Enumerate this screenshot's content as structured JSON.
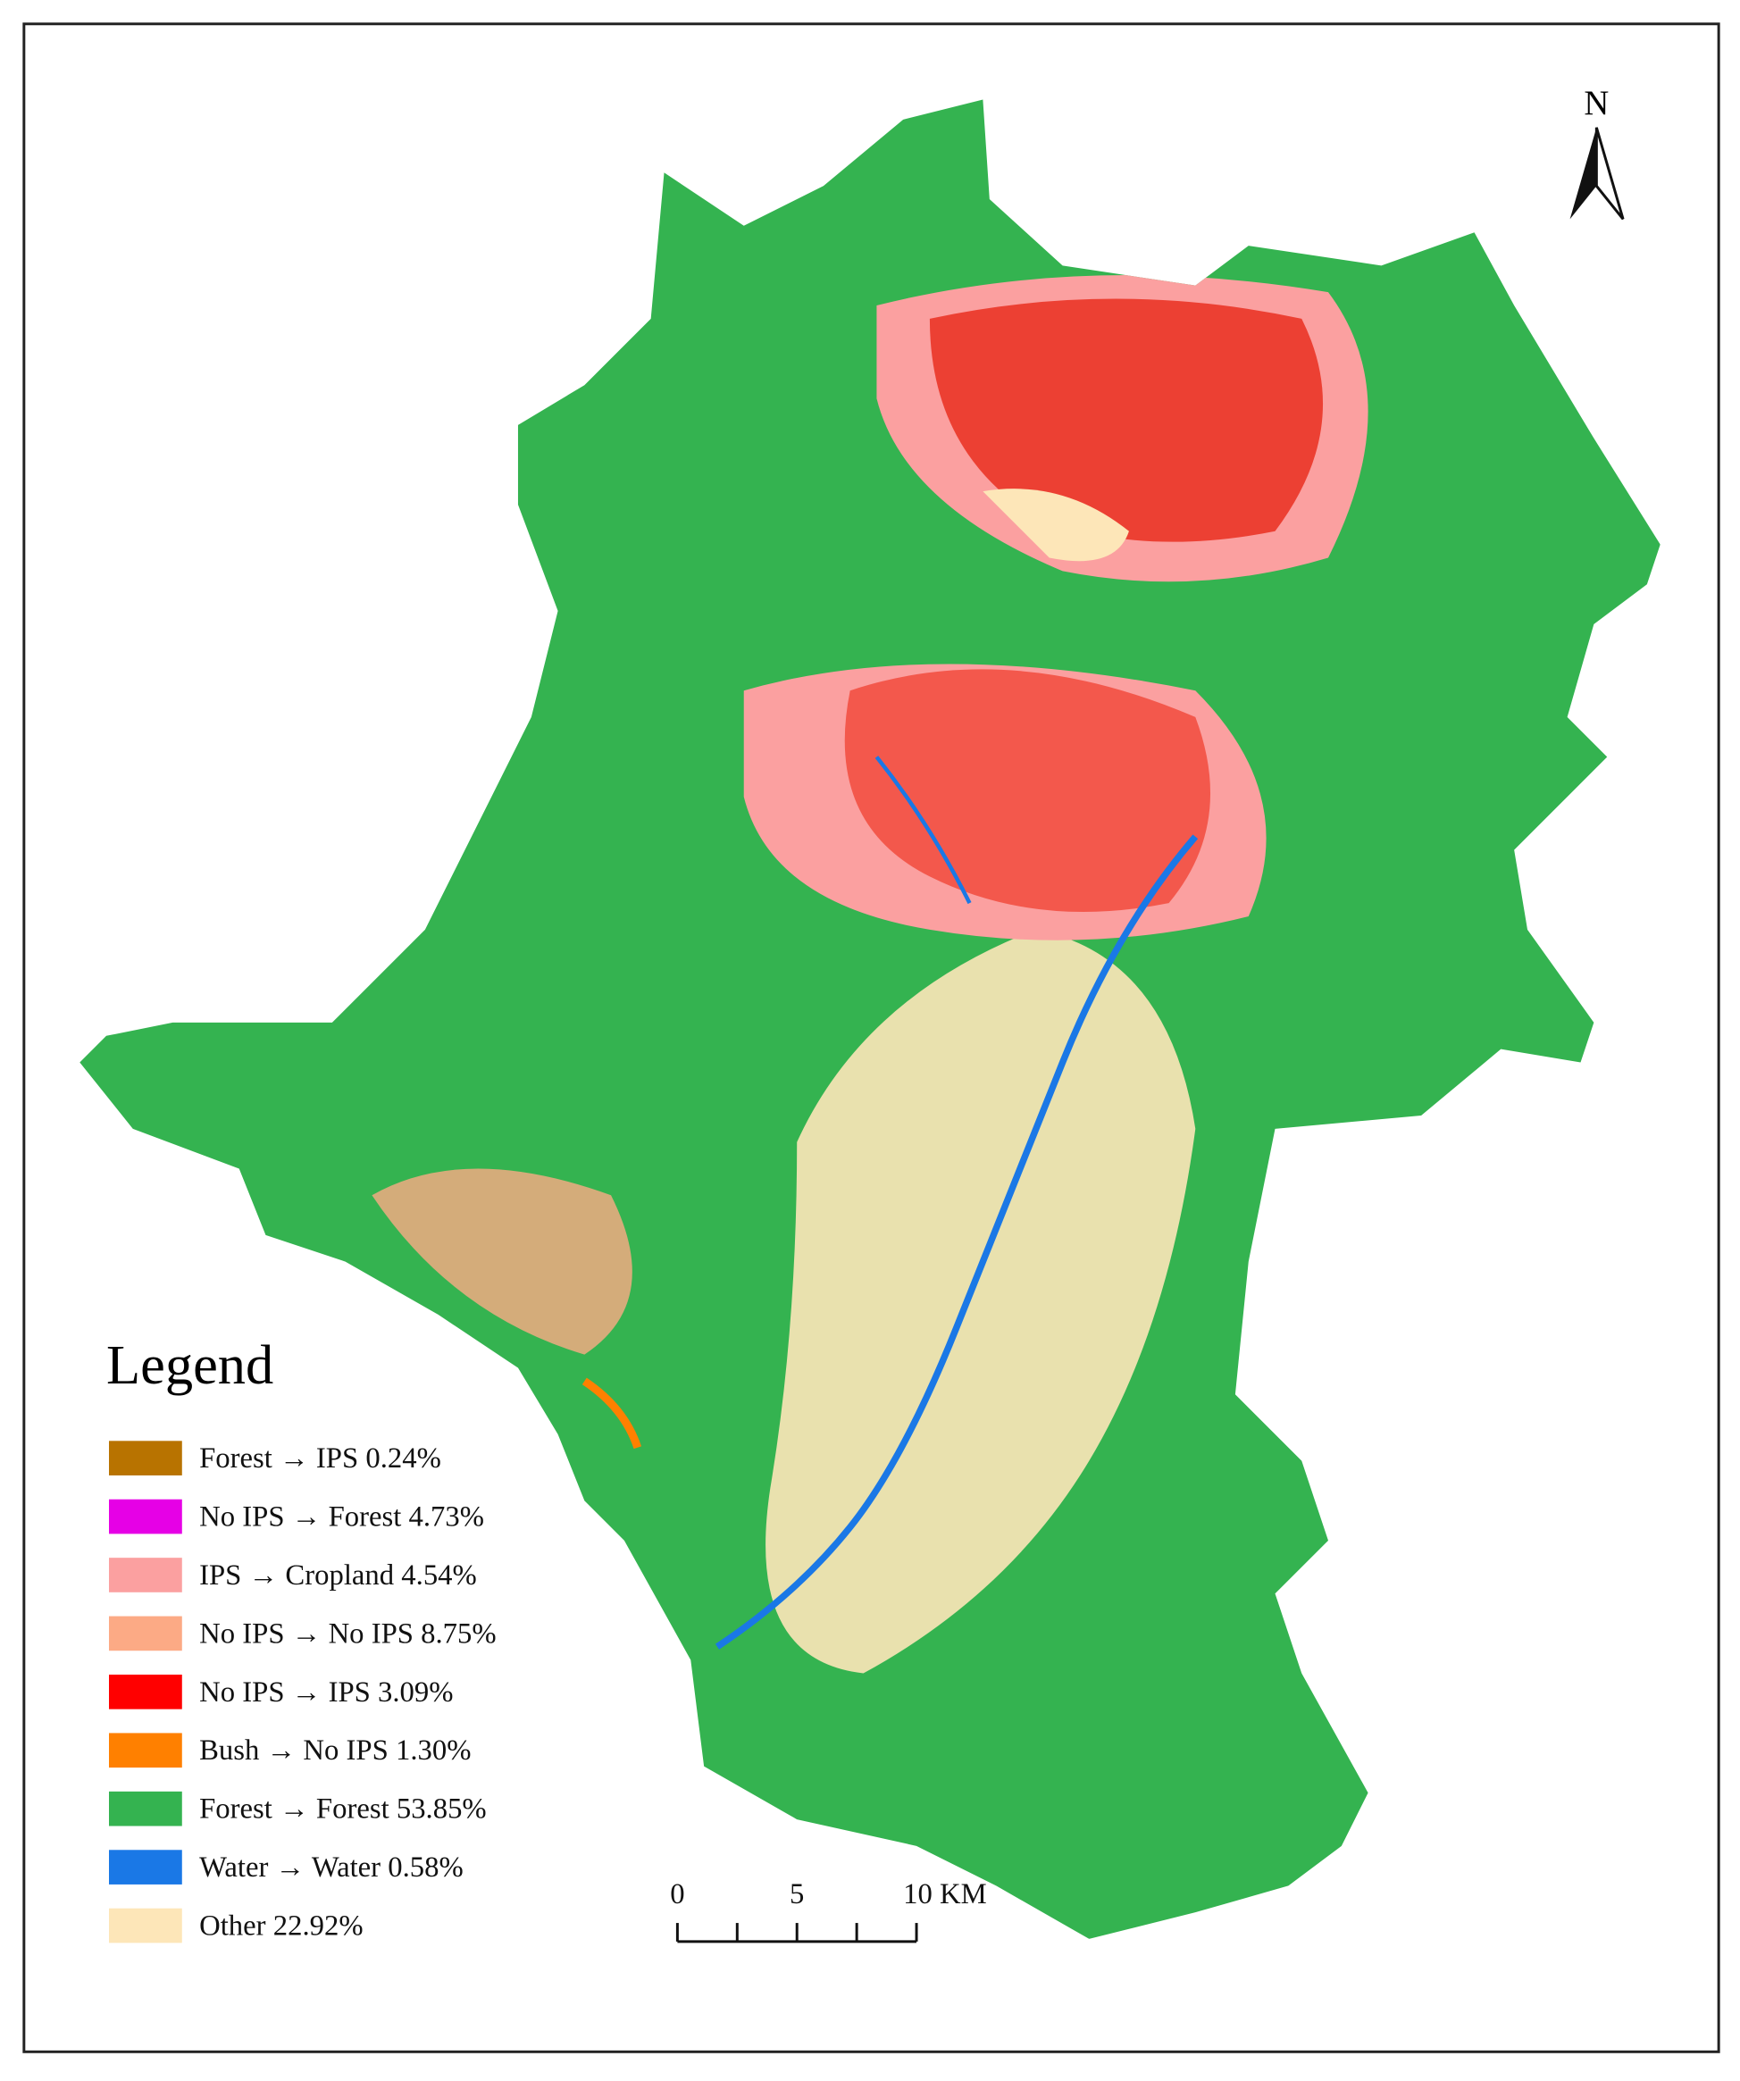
{
  "legend": {
    "title": "Legend",
    "items": [
      {
        "label": "Forest → IPS  0.24%",
        "color": "#b87300"
      },
      {
        "label": "No IPS → Forest  4.73%",
        "color": "#e600e6"
      },
      {
        "label": "IPS → Cropland  4.54%",
        "color": "#fba0a0"
      },
      {
        "label": "No IPS → No IPS  8.75%",
        "color": "#fcaa85"
      },
      {
        "label": "No IPS → IPS  3.09%",
        "color": "#ff0000"
      },
      {
        "label": "Bush → No IPS 1.30%",
        "color": "#ff8000"
      },
      {
        "label": "Forest → Forest 53.85%",
        "color": "#34b350"
      },
      {
        "label": "Water → Water 0.58%",
        "color": "#1a78e6"
      },
      {
        "label": "Other 22.92%",
        "color": "#fde6b8"
      }
    ]
  },
  "north_arrow": "N",
  "scale_bar": {
    "labels": [
      "0",
      "5",
      "10 KM"
    ]
  }
}
